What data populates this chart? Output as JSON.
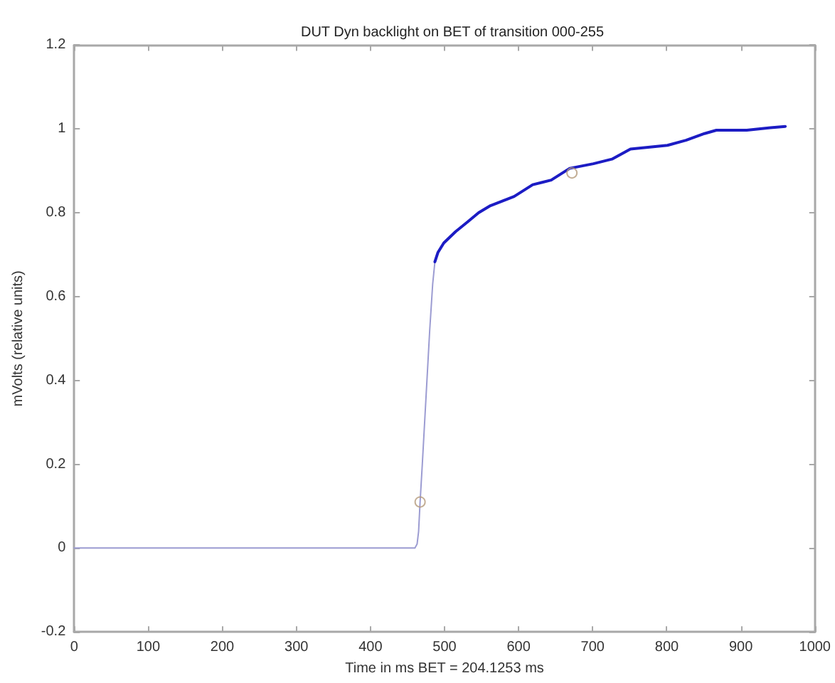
{
  "chart_data": {
    "type": "line",
    "title": "DUT Dyn backlight on BET of transition 000-255",
    "xlabel": "Time in ms BET = 204.1253 ms",
    "ylabel": "mVolts (relative units)",
    "xlim": [
      0,
      1000
    ],
    "xticks": [
      0,
      100,
      200,
      300,
      400,
      500,
      600,
      700,
      800,
      900,
      1000
    ],
    "ylim": [
      -0.2,
      1.2
    ],
    "yticks": [
      -0.2,
      0,
      0.2,
      0.4,
      0.6,
      0.8,
      1,
      1.2
    ],
    "grid": false,
    "line_style": "solid",
    "series": [
      {
        "color": "#9c9cd2",
        "marker": "none",
        "x": [
          0,
          100,
          200,
          300,
          400,
          460,
          463,
          465,
          467,
          470,
          475,
          480,
          484,
          487,
          491,
          499,
          515,
          531,
          546,
          562,
          578,
          594,
          619,
          644,
          669,
          701,
          726,
          751,
          801,
          826,
          851,
          867,
          908,
          940,
          960
        ],
        "values": [
          0,
          0,
          0,
          0,
          0,
          0,
          0.01,
          0.04,
          0.11,
          0.2,
          0.36,
          0.52,
          0.63,
          0.683,
          0.705,
          0.728,
          0.755,
          0.778,
          0.8,
          0.817,
          0.828,
          0.839,
          0.867,
          0.878,
          0.906,
          0.917,
          0.928,
          0.952,
          0.961,
          0.973,
          0.989,
          0.997,
          0.997,
          1.003,
          1.006
        ]
      },
      {
        "color": "#1c1cc4",
        "marker": "none",
        "x": [
          487,
          491,
          499,
          515,
          531,
          546,
          562,
          578,
          594,
          619,
          644,
          669,
          701,
          726,
          751,
          801,
          826,
          851,
          867,
          908,
          940,
          960
        ],
        "values": [
          0.683,
          0.705,
          0.728,
          0.755,
          0.778,
          0.8,
          0.817,
          0.828,
          0.839,
          0.867,
          0.878,
          0.906,
          0.917,
          0.928,
          0.952,
          0.961,
          0.973,
          0.989,
          0.997,
          0.997,
          1.003,
          1.006
        ]
      },
      {
        "type": "scatter",
        "color": "#b49a7a",
        "marker": "circle",
        "x": [
          467,
          672
        ],
        "values": [
          0.11,
          0.895
        ]
      }
    ]
  }
}
